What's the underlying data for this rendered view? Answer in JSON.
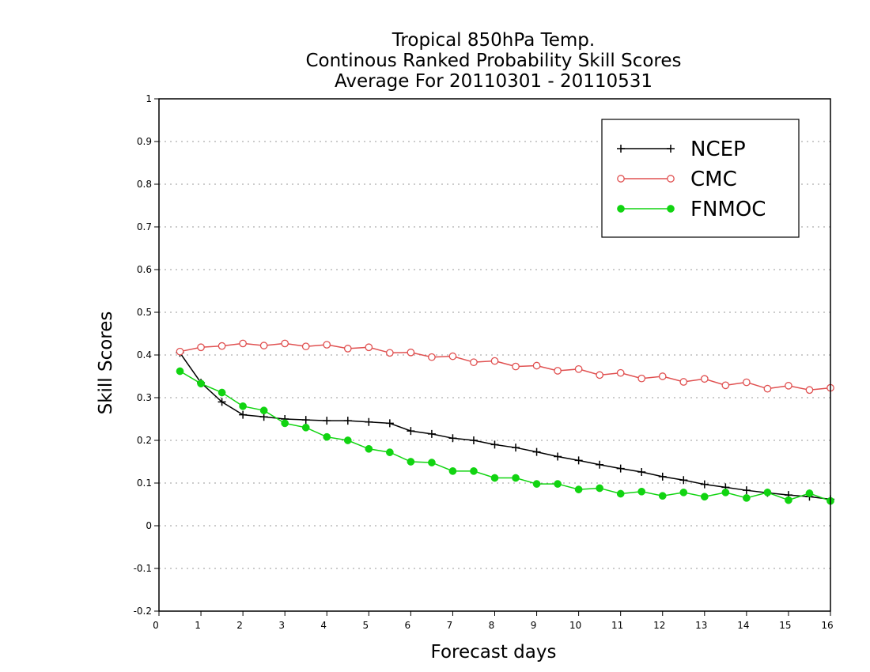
{
  "chart_data": {
    "type": "line",
    "title_lines": [
      "Tropical 850hPa Temp.",
      "Continous Ranked Probability Skill Scores",
      "Average For 20110301 - 20110531"
    ],
    "xlabel": "Forecast days",
    "ylabel": "Skill Scores",
    "xlim": [
      0,
      16
    ],
    "ylim": [
      -0.2,
      1
    ],
    "x_ticks": [
      0,
      1,
      2,
      3,
      4,
      5,
      6,
      7,
      8,
      9,
      10,
      11,
      12,
      13,
      14,
      15,
      16
    ],
    "x_tick_labels": [
      "0",
      "1",
      "2",
      "3",
      "4",
      "5",
      "6",
      "7",
      "8",
      "9",
      "10",
      "11",
      "12",
      "13",
      "14",
      "15",
      "16"
    ],
    "y_ticks": [
      -0.2,
      -0.1,
      0,
      0.1,
      0.2,
      0.3,
      0.4,
      0.5,
      0.6,
      0.7,
      0.8,
      0.9,
      1
    ],
    "y_tick_labels": [
      "-0.2",
      "-0.1",
      "0",
      "0.1",
      "0.2",
      "0.3",
      "0.4",
      "0.5",
      "0.6",
      "0.7",
      "0.8",
      "0.9",
      "1"
    ],
    "grid": "horizontal dotted",
    "legend_position": "top-right",
    "x": [
      0.5,
      1,
      1.5,
      2,
      2.5,
      3,
      3.5,
      4,
      4.5,
      5,
      5.5,
      6,
      6.5,
      7,
      7.5,
      8,
      8.5,
      9,
      9.5,
      10,
      10.5,
      11,
      11.5,
      12,
      12.5,
      13,
      13.5,
      14,
      14.5,
      15,
      15.5,
      16
    ],
    "series": [
      {
        "name": "NCEP",
        "color": "#000000",
        "marker": "plus",
        "values": [
          0.405,
          0.335,
          0.29,
          0.26,
          0.255,
          0.25,
          0.248,
          0.246,
          0.246,
          0.243,
          0.24,
          0.222,
          0.215,
          0.205,
          0.2,
          0.19,
          0.183,
          0.173,
          0.162,
          0.153,
          0.143,
          0.134,
          0.126,
          0.115,
          0.107,
          0.097,
          0.09,
          0.083,
          0.077,
          0.072,
          0.068,
          0.062
        ]
      },
      {
        "name": "CMC",
        "color": "#e05050",
        "marker": "open-circle",
        "values": [
          0.408,
          0.418,
          0.421,
          0.427,
          0.422,
          0.427,
          0.42,
          0.424,
          0.415,
          0.418,
          0.405,
          0.406,
          0.395,
          0.397,
          0.383,
          0.386,
          0.373,
          0.375,
          0.363,
          0.367,
          0.353,
          0.358,
          0.345,
          0.35,
          0.337,
          0.344,
          0.329,
          0.336,
          0.321,
          0.328,
          0.318,
          0.323
        ]
      },
      {
        "name": "FNMOC",
        "color": "#11d411",
        "marker": "filled-circle",
        "values": [
          0.362,
          0.333,
          0.312,
          0.28,
          0.27,
          0.24,
          0.23,
          0.208,
          0.2,
          0.18,
          0.172,
          0.15,
          0.148,
          0.128,
          0.128,
          0.112,
          0.112,
          0.098,
          0.098,
          0.085,
          0.088,
          0.075,
          0.08,
          0.07,
          0.078,
          0.068,
          0.078,
          0.065,
          0.078,
          0.06,
          0.076,
          0.058
        ]
      }
    ]
  }
}
